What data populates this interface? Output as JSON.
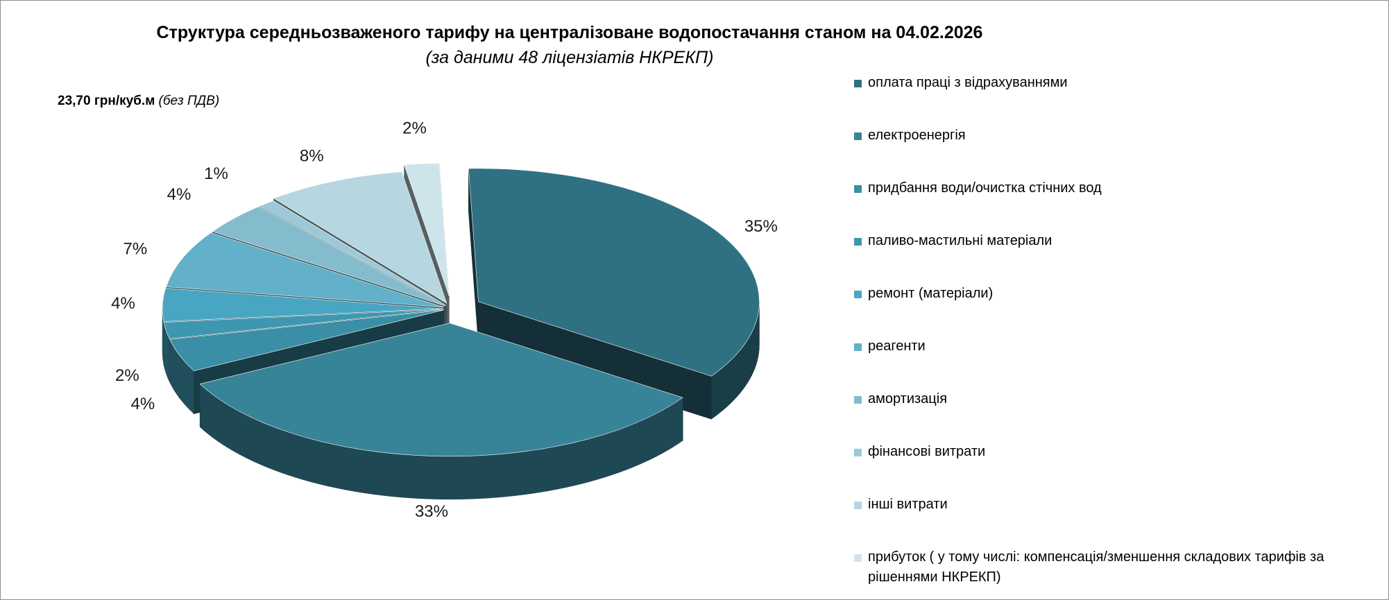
{
  "chart_data": {
    "type": "pie",
    "title": "Структура  середньозваженого тарифу на централізоване водопостачання станом на 04.02.2026",
    "subtitle": "(за даними 48 ліцензіатів НКРЕКП)",
    "note": {
      "amount": "23,70 грн/куб.м",
      "vat": "(без ПДВ)"
    },
    "legend_position": "right",
    "three_d": true,
    "exploded": true,
    "categories": [
      "оплата праці з відрахуваннями",
      "електроенергія",
      "придбання води/очистка стічних вод",
      "паливо-мастильні матеріали",
      "ремонт (матеріали)",
      "реагенти",
      "амортизація",
      "фінансові витрати",
      "інші витрати",
      "прибуток ( у тому числі: компенсація/зменшення складових тарифів за рішеннями НКРЕКП)"
    ],
    "values": [
      35,
      33,
      4,
      2,
      4,
      7,
      4,
      1,
      8,
      2
    ],
    "data_labels": [
      "35%",
      "33%",
      "4%",
      "2%",
      "4%",
      "7%",
      "4%",
      "1%",
      "8%",
      "2%"
    ],
    "colors": [
      "#2f7183",
      "#378498",
      "#3a8ea5",
      "#3e97b0",
      "#48a6c2",
      "#62b0c9",
      "#84bcce",
      "#9cc9d8",
      "#b6d6e0",
      "#cde4eb"
    ]
  }
}
